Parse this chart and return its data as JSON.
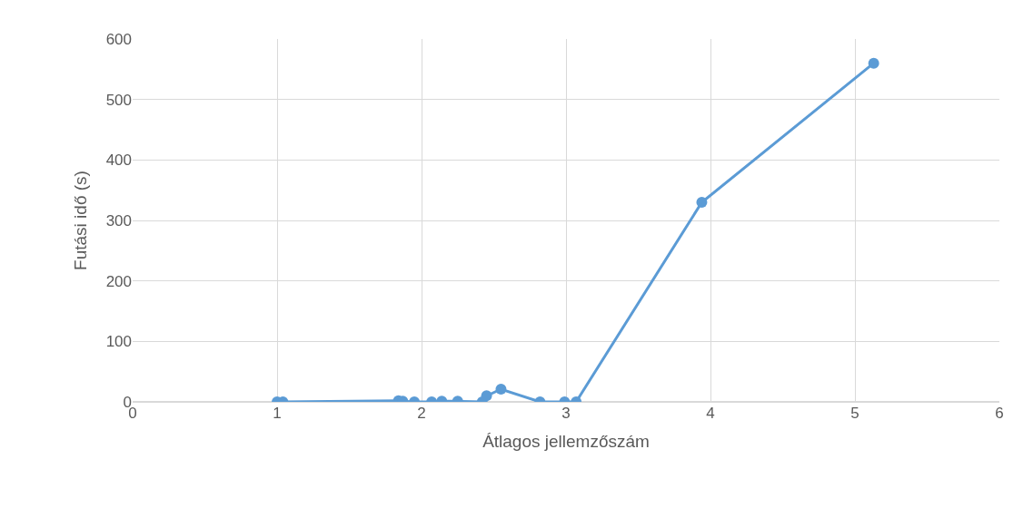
{
  "chart_data": {
    "type": "line",
    "xlabel": "Átlagos jellemzőszám",
    "ylabel": "Futási idő (s)",
    "x": [
      1.0,
      1.04,
      1.84,
      1.87,
      1.95,
      2.07,
      2.14,
      2.25,
      2.42,
      2.45,
      2.55,
      2.82,
      2.99,
      3.07,
      3.94,
      5.13
    ],
    "series": [
      {
        "color": "#5b9bd5",
        "values": [
          0,
          0,
          2,
          1,
          0,
          0,
          1,
          1,
          0,
          10,
          21,
          0,
          0,
          0,
          330,
          560
        ]
      }
    ],
    "xlim": [
      0,
      6
    ],
    "xticks": [
      0,
      1,
      2,
      3,
      4,
      5,
      6
    ],
    "ylim": [
      0,
      600
    ],
    "yticks": [
      0,
      100,
      200,
      300,
      400,
      500,
      600
    ],
    "grid": true,
    "legend": false,
    "marker": "circle",
    "line_style": "solid"
  }
}
